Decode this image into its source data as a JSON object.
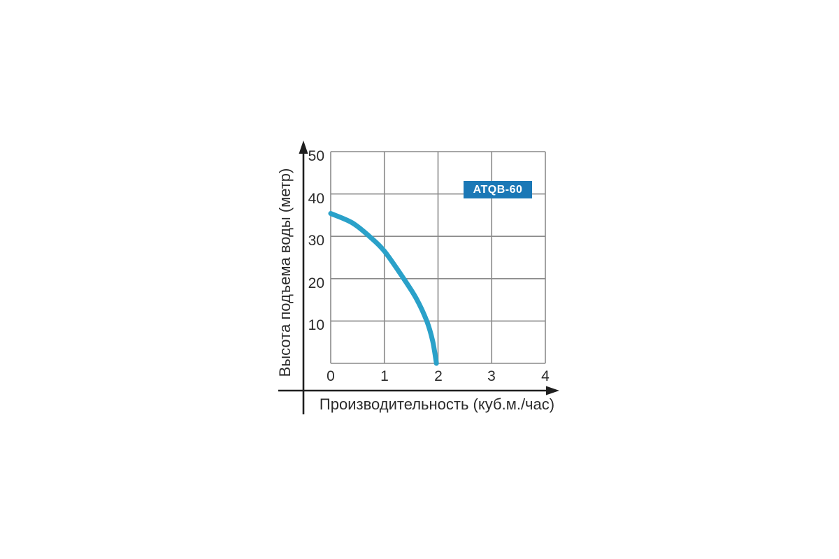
{
  "chart_data": {
    "type": "line",
    "title": "",
    "xlabel": "Производительность (куб.м./час)",
    "ylabel": "Высота подъема воды (метр)",
    "xlim": [
      0,
      4
    ],
    "ylim": [
      0,
      50
    ],
    "xticks": [
      "0",
      "1",
      "2",
      "3",
      "4"
    ],
    "yticks": [
      "10",
      "20",
      "30",
      "40",
      "50"
    ],
    "grid": true,
    "legend_position": "upper-right-badge",
    "series": [
      {
        "name": "ATQB-60",
        "points": [
          [
            0,
            35.4
          ],
          [
            0.4,
            33.2
          ],
          [
            0.72,
            30
          ],
          [
            1.0,
            26.5
          ],
          [
            1.36,
            20
          ],
          [
            1.6,
            15.2
          ],
          [
            1.79,
            10
          ],
          [
            1.9,
            5.3
          ],
          [
            1.97,
            0
          ]
        ]
      }
    ],
    "colors": {
      "curve": "#2aa1c9",
      "badge_bg": "#1b78b6",
      "badge_text": "#ffffff",
      "grid": "#8a8a8a",
      "axis": "#1f1f1f",
      "text": "#2b2b2b",
      "background": "#ffffff"
    }
  }
}
